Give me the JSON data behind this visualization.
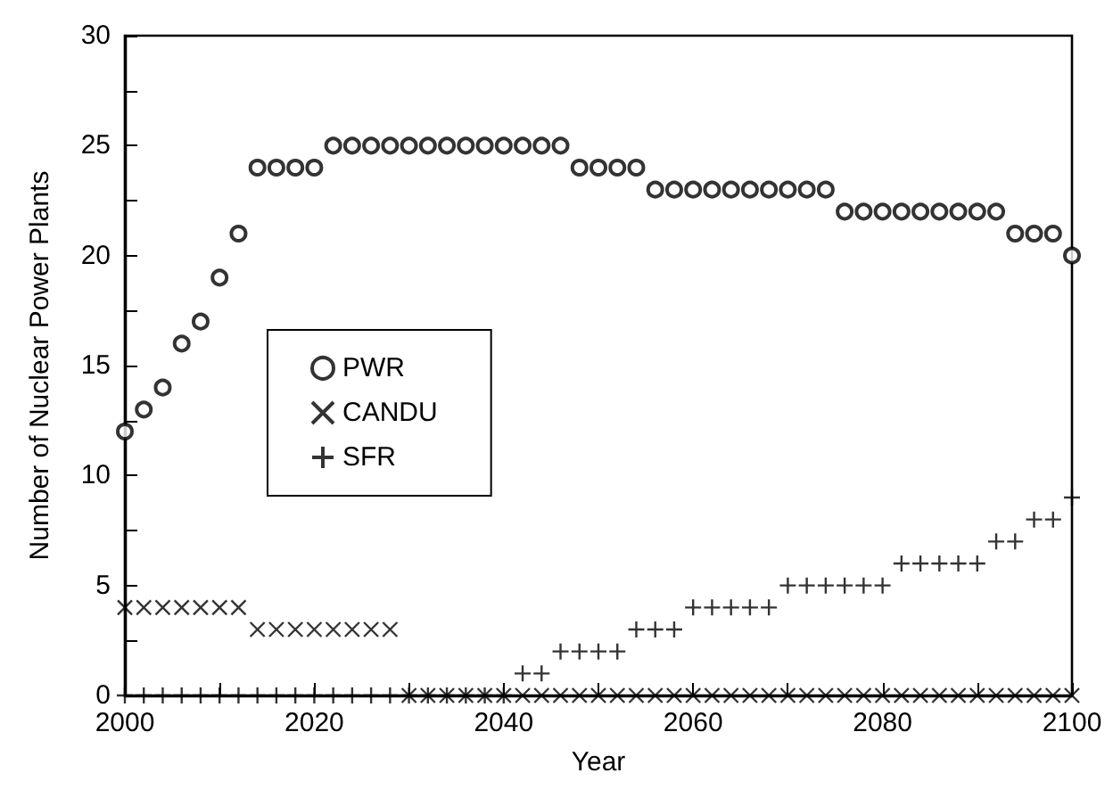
{
  "chart_data": {
    "type": "scatter",
    "xlabel": "Year",
    "ylabel": "Number of Nuclear Power Plants",
    "x": [
      2000,
      2002,
      2004,
      2006,
      2008,
      2010,
      2012,
      2014,
      2016,
      2018,
      2020,
      2022,
      2024,
      2026,
      2028,
      2030,
      2032,
      2034,
      2036,
      2038,
      2040,
      2042,
      2044,
      2046,
      2048,
      2050,
      2052,
      2054,
      2056,
      2058,
      2060,
      2062,
      2064,
      2066,
      2068,
      2070,
      2072,
      2074,
      2076,
      2078,
      2080,
      2082,
      2084,
      2086,
      2088,
      2090,
      2092,
      2094,
      2096,
      2098,
      2100
    ],
    "series": [
      {
        "name": "PWR",
        "color": "#000000",
        "marker": "circle",
        "values": [
          12,
          13,
          14,
          16,
          17,
          19,
          21,
          24,
          24,
          24,
          24,
          25,
          25,
          25,
          25,
          25,
          25,
          25,
          25,
          25,
          25,
          25,
          25,
          25,
          24,
          24,
          24,
          24,
          23,
          23,
          23,
          23,
          23,
          23,
          23,
          23,
          23,
          23,
          22,
          22,
          22,
          22,
          22,
          22,
          22,
          22,
          22,
          21,
          21,
          21,
          20
        ]
      },
      {
        "name": "CANDU",
        "color": "#000000",
        "marker": "cross",
        "values": [
          4,
          4,
          4,
          4,
          4,
          4,
          4,
          3,
          3,
          3,
          3,
          3,
          3,
          3,
          3,
          0,
          0,
          0,
          0,
          0,
          0,
          0,
          0,
          0,
          0,
          0,
          0,
          0,
          0,
          0,
          0,
          0,
          0,
          0,
          0,
          0,
          0,
          0,
          0,
          0,
          0,
          0,
          0,
          0,
          0,
          0,
          0,
          0,
          0,
          0,
          0
        ]
      },
      {
        "name": "SFR",
        "color": "#000000",
        "marker": "plus",
        "values": [
          0,
          0,
          0,
          0,
          0,
          0,
          0,
          0,
          0,
          0,
          0,
          0,
          0,
          0,
          0,
          0,
          0,
          0,
          0,
          0,
          0,
          1,
          1,
          2,
          2,
          2,
          2,
          3,
          3,
          3,
          4,
          4,
          4,
          4,
          4,
          5,
          5,
          5,
          5,
          5,
          5,
          6,
          6,
          6,
          6,
          6,
          7,
          7,
          8,
          8,
          9
        ]
      }
    ],
    "xlim": [
      2000,
      2100
    ],
    "xticks": [
      2000,
      2020,
      2040,
      2060,
      2080,
      2100
    ],
    "ylim": [
      0,
      30
    ],
    "yticks": [
      0,
      5,
      10,
      15,
      20,
      25,
      30
    ],
    "grid": false,
    "legend": "left"
  }
}
